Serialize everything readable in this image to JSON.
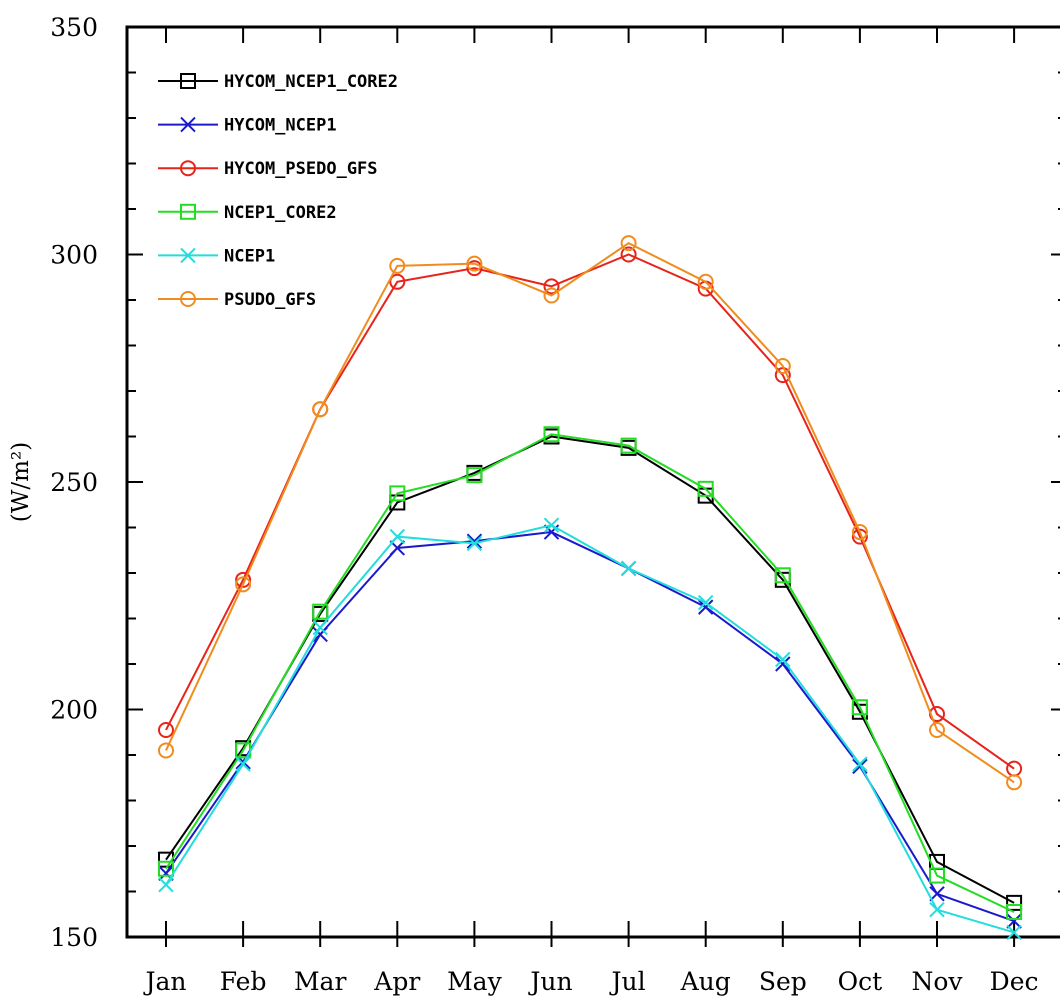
{
  "chart_data": {
    "type": "line",
    "title": "",
    "xlabel": "",
    "ylabel": "(W/m²)",
    "ylim": [
      150,
      350
    ],
    "yticks": [
      150,
      200,
      250,
      300,
      350
    ],
    "y_minor_step": 10,
    "categories": [
      "Jan",
      "Feb",
      "Mar",
      "Apr",
      "May",
      "Jun",
      "Jul",
      "Aug",
      "Sep",
      "Oct",
      "Nov",
      "Dec"
    ],
    "legend_position": "top-left",
    "grid": false,
    "series": [
      {
        "name": "HYCOM_NCEP1_CORE2",
        "color": "#000000",
        "marker": "square",
        "values": [
          167,
          191.5,
          221,
          245.5,
          252,
          260,
          257.5,
          247,
          228.5,
          199.5,
          166.5,
          157.5
        ]
      },
      {
        "name": "HYCOM_NCEP1",
        "color": "#1a1acc",
        "marker": "x",
        "values": [
          164,
          188.5,
          216.5,
          235.5,
          237,
          239,
          231,
          222.5,
          210,
          187.5,
          159.5,
          153.5
        ]
      },
      {
        "name": "HYCOM_PSEDO_GFS",
        "color": "#e8231a",
        "marker": "circle",
        "values": [
          195.5,
          228.5,
          266,
          294,
          297,
          293,
          300,
          292.5,
          273.5,
          238,
          199,
          187
        ]
      },
      {
        "name": "NCEP1_CORE2",
        "color": "#22dd22",
        "marker": "square",
        "values": [
          165,
          191,
          221.5,
          247.5,
          251.5,
          260.5,
          258,
          248.5,
          229.5,
          200.5,
          163.5,
          155.5
        ]
      },
      {
        "name": "NCEP1",
        "color": "#22dddd",
        "marker": "x",
        "values": [
          161.5,
          188,
          218,
          238,
          236.5,
          240.5,
          231,
          223.5,
          211,
          188,
          156,
          151
        ]
      },
      {
        "name": "PSUDO_GFS",
        "color": "#f08c1e",
        "marker": "circle",
        "values": [
          191,
          227.5,
          266,
          297.5,
          298,
          291,
          302.5,
          294,
          275.5,
          239,
          195.5,
          184
        ]
      }
    ]
  }
}
